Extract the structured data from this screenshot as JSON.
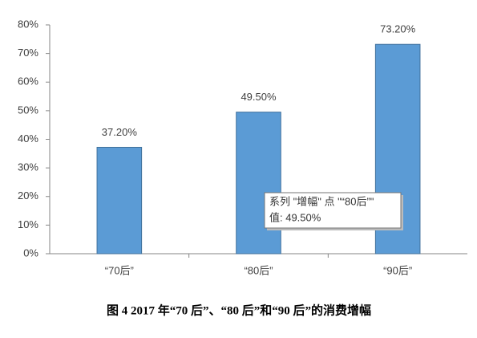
{
  "chart_data": {
    "type": "bar",
    "categories": [
      "“70后”",
      "“80后”",
      "“90后”"
    ],
    "values": [
      37.2,
      49.5,
      73.2
    ],
    "value_labels": [
      "37.20%",
      "49.50%",
      "73.20%"
    ],
    "color": "#5b9bd5",
    "ylim": [
      0,
      80
    ],
    "yticks": [
      {
        "value": 0,
        "label": "0%"
      },
      {
        "value": 10,
        "label": "10%"
      },
      {
        "value": 20,
        "label": "20%"
      },
      {
        "value": 30,
        "label": "30%"
      },
      {
        "value": 40,
        "label": "40%"
      },
      {
        "value": 50,
        "label": "50%"
      },
      {
        "value": 60,
        "label": "60%"
      },
      {
        "value": 70,
        "label": "70%"
      },
      {
        "value": 80,
        "label": "80%"
      }
    ],
    "grid": false
  },
  "tooltip": {
    "lines": [
      "系列 \"增幅\" 点 \"“80后”\"",
      "值: 49.50%"
    ]
  },
  "caption": "图 4   2017 年“70 后”、“80 后”和“90 后”的消费增幅"
}
